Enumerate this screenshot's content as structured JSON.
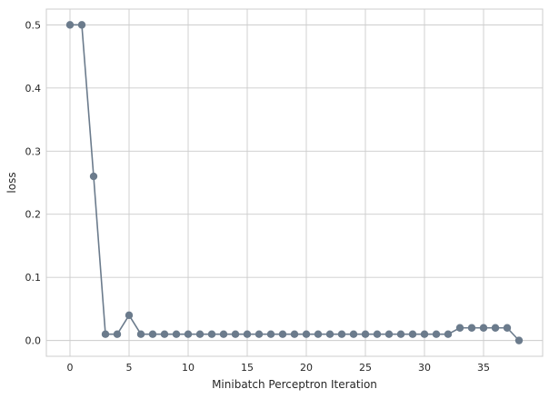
{
  "chart_data": {
    "type": "line",
    "title": "",
    "xlabel": "Minibatch Perceptron Iteration",
    "ylabel": "loss",
    "xlim": [
      -2,
      40
    ],
    "ylim": [
      -0.025,
      0.525
    ],
    "xticks": [
      0,
      5,
      10,
      15,
      20,
      25,
      30,
      35
    ],
    "yticks": [
      0.0,
      0.1,
      0.2,
      0.3,
      0.4,
      0.5
    ],
    "xtick_labels": [
      "0",
      "5",
      "10",
      "15",
      "20",
      "25",
      "30",
      "35"
    ],
    "ytick_labels": [
      "0.0",
      "0.1",
      "0.2",
      "0.3",
      "0.4",
      "0.5"
    ],
    "grid": true,
    "line_color": "#6b7b8c",
    "series": [
      {
        "x": [
          0,
          1,
          2,
          3,
          4,
          5,
          6,
          7,
          8,
          9,
          10,
          11,
          12,
          13,
          14,
          15,
          16,
          17,
          18,
          19,
          20,
          21,
          22,
          23,
          24,
          25,
          26,
          27,
          28,
          29,
          30,
          31,
          32,
          33,
          34,
          35,
          36,
          37,
          38
        ],
        "values": [
          0.5,
          0.5,
          0.26,
          0.01,
          0.01,
          0.04,
          0.01,
          0.01,
          0.01,
          0.01,
          0.01,
          0.01,
          0.01,
          0.01,
          0.01,
          0.01,
          0.01,
          0.01,
          0.01,
          0.01,
          0.01,
          0.01,
          0.01,
          0.01,
          0.01,
          0.01,
          0.01,
          0.01,
          0.01,
          0.01,
          0.01,
          0.01,
          0.01,
          0.02,
          0.02,
          0.02,
          0.02,
          0.02,
          0.0
        ]
      }
    ]
  }
}
